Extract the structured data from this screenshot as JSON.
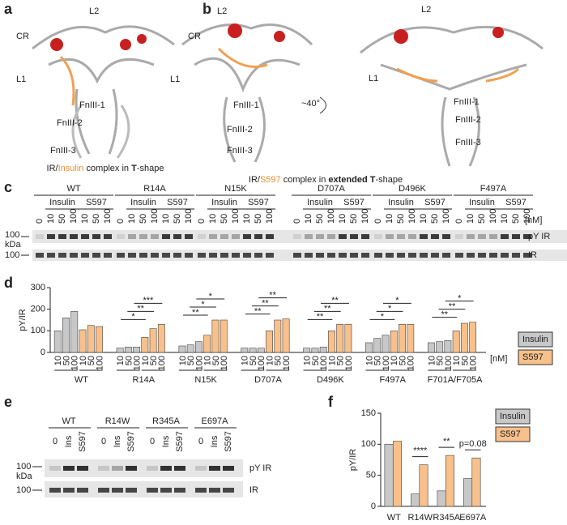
{
  "panels": {
    "a": {
      "letter": "a",
      "labels": [
        "CR",
        "L2",
        "L1",
        "FnIII-1",
        "FnIII-2",
        "FnIII-3"
      ],
      "caption": [
        "IR/",
        "Insulin",
        " complex in ",
        "T",
        "-shape"
      ]
    },
    "b": {
      "letter": "b",
      "labels_left": [
        "CR",
        "L2",
        "L1",
        "FnIII-1",
        "FnIII-2",
        "FnIII-3"
      ],
      "rotation": "~40°",
      "labels_right": [
        "L2",
        "L1",
        "FnIII-1",
        "FnIII-2",
        "FnIII-3"
      ],
      "caption": [
        "IR/",
        "S597",
        " complex in ",
        "extended T",
        "-shape"
      ]
    },
    "c": {
      "letter": "c",
      "groups": [
        "WT",
        "R14A",
        "N15K",
        "D707A",
        "D496K",
        "F497A"
      ],
      "treatments": [
        "Insulin",
        "S597"
      ],
      "doses": [
        "0",
        "10",
        "50",
        "100"
      ],
      "unit": "[nM]",
      "rows": [
        "pY IR",
        "IR"
      ],
      "marker": "100",
      "marker_unit": "kDa"
    },
    "e": {
      "letter": "e",
      "groups": [
        "WT",
        "R14W",
        "R345A",
        "E697A"
      ],
      "lanes": [
        "0",
        "Ins",
        "S597"
      ],
      "rows": [
        "pY IR",
        "IR"
      ],
      "marker": "100",
      "marker_unit": "kDa"
    },
    "d": {
      "letter": "d"
    },
    "f": {
      "letter": "f"
    }
  },
  "chart_data": [
    {
      "type": "bar",
      "y_label": "pY/IR",
      "ylim": [
        0,
        300
      ],
      "yticks": [
        0,
        100,
        200,
        300
      ],
      "categories": [
        "WT",
        "R14A",
        "N15K",
        "D707A",
        "D496K",
        "F497A",
        "F701A/F705A"
      ],
      "doses": [
        "10",
        "50",
        "100"
      ],
      "unit": "[nM]",
      "legend": "right",
      "series": [
        {
          "name": "Insulin",
          "color": "#c8c8c8",
          "values": [
            [
              100,
              160,
              190
            ],
            [
              20,
              25,
              25
            ],
            [
              30,
              35,
              50
            ],
            [
              20,
              20,
              20
            ],
            [
              20,
              20,
              25
            ],
            [
              45,
              65,
              80
            ],
            [
              45,
              50,
              55
            ]
          ]
        },
        {
          "name": "S597",
          "color": "#f8c08a",
          "values": [
            [
              105,
              125,
              120
            ],
            [
              70,
              110,
              130
            ],
            [
              80,
              150,
              150
            ],
            [
              100,
              150,
              155
            ],
            [
              100,
              130,
              130
            ],
            [
              100,
              130,
              130
            ],
            [
              100,
              135,
              140
            ]
          ]
        }
      ],
      "significance": [
        [],
        [
          "*",
          "**",
          "***"
        ],
        [
          "**",
          "*",
          "*"
        ],
        [
          "**",
          "**",
          "**"
        ],
        [
          "**",
          "**",
          "**"
        ],
        [
          "*",
          "*",
          "*"
        ],
        [
          "**",
          "**",
          "*"
        ]
      ]
    },
    {
      "type": "bar",
      "y_label": "pY/IR",
      "ylim": [
        0,
        150
      ],
      "yticks": [
        0,
        50,
        100,
        150
      ],
      "categories": [
        "WT",
        "R14W",
        "R345A",
        "E697A"
      ],
      "legend": "top-right",
      "series": [
        {
          "name": "Insulin",
          "color": "#c8c8c8",
          "values": [
            100,
            20,
            25,
            45
          ]
        },
        {
          "name": "S597",
          "color": "#f8c08a",
          "values": [
            105,
            67,
            82,
            78
          ]
        }
      ],
      "annotations": [
        null,
        "****",
        "**",
        "p=0.08"
      ]
    }
  ]
}
